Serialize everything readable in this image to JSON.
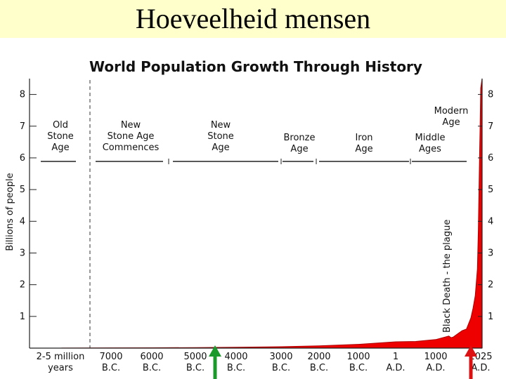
{
  "slide": {
    "title": "Hoeveelheid mensen"
  },
  "chart_data": {
    "type": "area",
    "title": "World Population Growth Through History",
    "ylabel": "Billions of people",
    "ylim": [
      0,
      8.5
    ],
    "yticks": [
      "1",
      "2",
      "3",
      "4",
      "5",
      "6",
      "7",
      "8"
    ],
    "x_ticks": [
      {
        "line1": "2-5 million",
        "line2": "years"
      },
      {
        "line1": "7000",
        "line2": "B.C."
      },
      {
        "line1": "6000",
        "line2": "B.C."
      },
      {
        "line1": "5000",
        "line2": "B.C."
      },
      {
        "line1": "4000",
        "line2": "B.C."
      },
      {
        "line1": "3000",
        "line2": "B.C."
      },
      {
        "line1": "2000",
        "line2": "B.C."
      },
      {
        "line1": "1000",
        "line2": "B.C."
      },
      {
        "line1": "1",
        "line2": "A.D."
      },
      {
        "line1": "1000",
        "line2": "A.D."
      },
      {
        "line1": "2025",
        "line2": "A.D."
      }
    ],
    "eras": [
      {
        "lines": [
          "Old",
          "Stone",
          "Age"
        ]
      },
      {
        "lines": [
          "New",
          "Stone Age",
          "Commences"
        ]
      },
      {
        "lines": [
          "New",
          "Stone",
          "Age"
        ]
      },
      {
        "lines": [
          "Bronze",
          "Age"
        ]
      },
      {
        "lines": [
          "Iron",
          "Age"
        ]
      },
      {
        "lines": [
          "Middle",
          "Ages"
        ]
      },
      {
        "lines": [
          "Modern",
          "Age"
        ]
      }
    ],
    "annotation": "Black Death - the plague",
    "series": [
      {
        "x": [
          -5000000,
          -10000,
          -7000,
          -6000,
          -5000,
          -4000,
          -3000,
          -2000,
          -1000,
          1,
          500,
          1000,
          1300,
          1350,
          1400,
          1500,
          1600,
          1700,
          1800,
          1850,
          1900,
          1950,
          1970,
          1990,
          2000,
          2010,
          2025
        ],
        "values": [
          0.003,
          0.005,
          0.008,
          0.012,
          0.018,
          0.028,
          0.045,
          0.072,
          0.12,
          0.2,
          0.21,
          0.27,
          0.38,
          0.33,
          0.35,
          0.45,
          0.55,
          0.6,
          0.95,
          1.26,
          1.65,
          2.5,
          3.7,
          5.3,
          6.1,
          6.9,
          8.2
        ]
      }
    ],
    "colors": {
      "fill": "#ee0000",
      "arrow_left": "#1a9a2a",
      "arrow_right": "#dd1111"
    }
  }
}
